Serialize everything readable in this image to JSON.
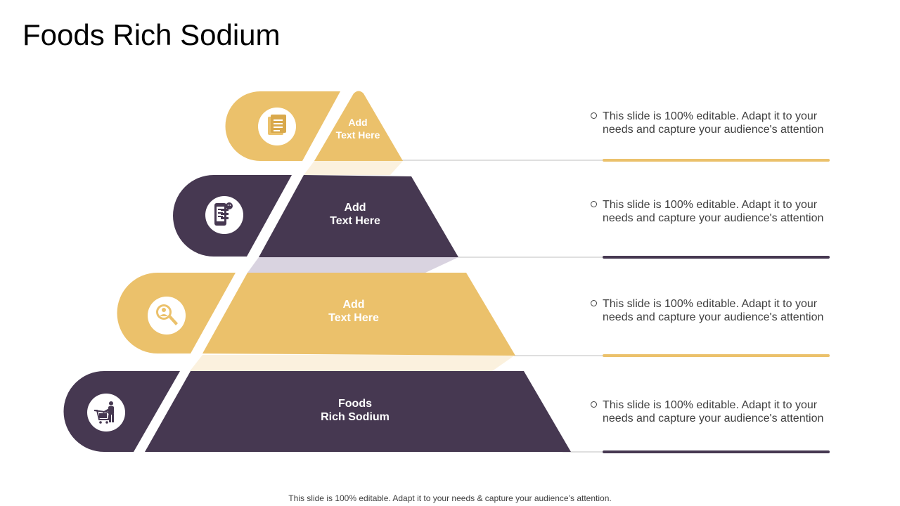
{
  "title": "Foods Rich Sodium",
  "colors": {
    "gold": "#EBC16B",
    "purple": "#463851",
    "line": "#BFBFBF",
    "text": "#404040"
  },
  "tiers": [
    {
      "label_line1": "Add",
      "label_line2": "Text Here",
      "color": "#EBC16B",
      "icon": "document-icon",
      "description": "This slide is 100% editable. Adapt it to your needs and capture your audience's attention"
    },
    {
      "label_line1": "Add",
      "label_line2": "Text Here",
      "color": "#463851",
      "icon": "mobile-checklist-icon",
      "description": "This slide is 100% editable. Adapt it to your needs and capture your audience's attention"
    },
    {
      "label_line1": "Add",
      "label_line2": "Text Here",
      "color": "#EBC16B",
      "icon": "search-user-icon",
      "description": "This slide is 100% editable. Adapt it to your needs and capture your audience's attention"
    },
    {
      "label_line1": "Foods",
      "label_line2": "Rich Sodium",
      "color": "#463851",
      "icon": "shopping-cart-person-icon",
      "description": "This slide is 100% editable. Adapt it to your needs and capture your audience's attention"
    }
  ],
  "footer": "This slide is 100% editable. Adapt it to your needs & capture your audience’s attention."
}
